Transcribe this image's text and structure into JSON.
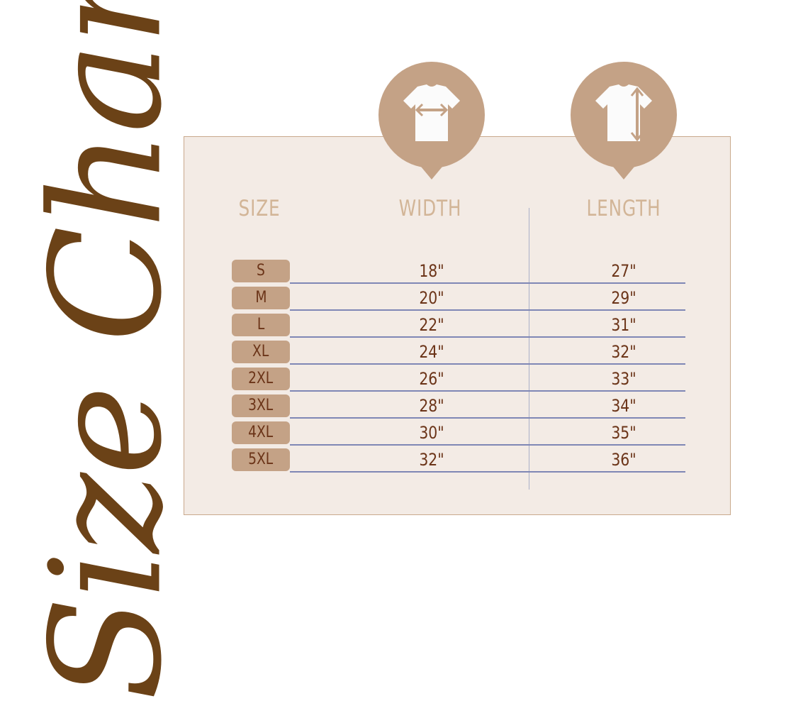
{
  "title": "Size Chart",
  "headers": {
    "size": "SIZE",
    "width": "WIDTH",
    "length": "LENGTH"
  },
  "icons": {
    "width": "tshirt-width-icon",
    "length": "tshirt-length-icon"
  },
  "colors": {
    "title": "#6b4217",
    "panel": "#f3ebe5",
    "accent": "#c4a286",
    "header": "#d2b597",
    "values": "#6b3418",
    "rule": "#7f87b5"
  },
  "rows": [
    {
      "size": "S",
      "width": "18\"",
      "length": "27\""
    },
    {
      "size": "M",
      "width": "20\"",
      "length": "29\""
    },
    {
      "size": "L",
      "width": "22\"",
      "length": "31\""
    },
    {
      "size": "XL",
      "width": "24\"",
      "length": "32\""
    },
    {
      "size": "2XL",
      "width": "26\"",
      "length": "33\""
    },
    {
      "size": "3XL",
      "width": "28\"",
      "length": "34\""
    },
    {
      "size": "4XL",
      "width": "30\"",
      "length": "35\""
    },
    {
      "size": "5XL",
      "width": "32\"",
      "length": "36\""
    }
  ]
}
